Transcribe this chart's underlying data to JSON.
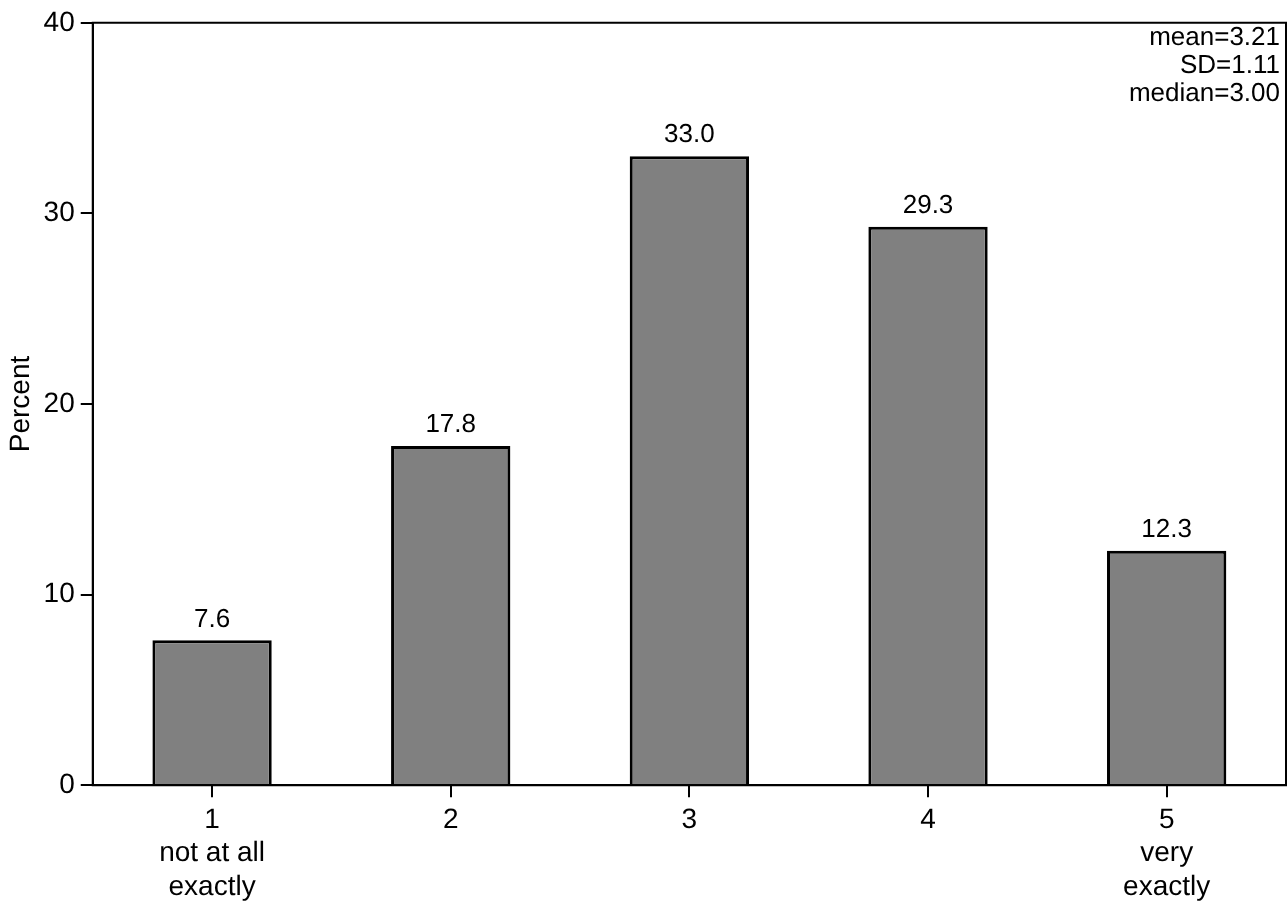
{
  "chart_data": {
    "type": "bar",
    "ylabel": "Percent",
    "categories": [
      "1\nnot at all\nexactly",
      "2",
      "3",
      "4",
      "5\nvery\nexactly"
    ],
    "values": [
      7.6,
      17.8,
      33.0,
      29.3,
      12.3
    ],
    "color": "#808080",
    "value_labels": [
      "7.6",
      "17.8",
      "33.0",
      "29.3",
      "12.3"
    ],
    "ylim": [
      0,
      40
    ],
    "yticks": [
      0,
      10,
      20,
      30,
      40
    ],
    "annotations": [
      "mean=3.21",
      "SD=1.11",
      "median=3.00"
    ]
  }
}
